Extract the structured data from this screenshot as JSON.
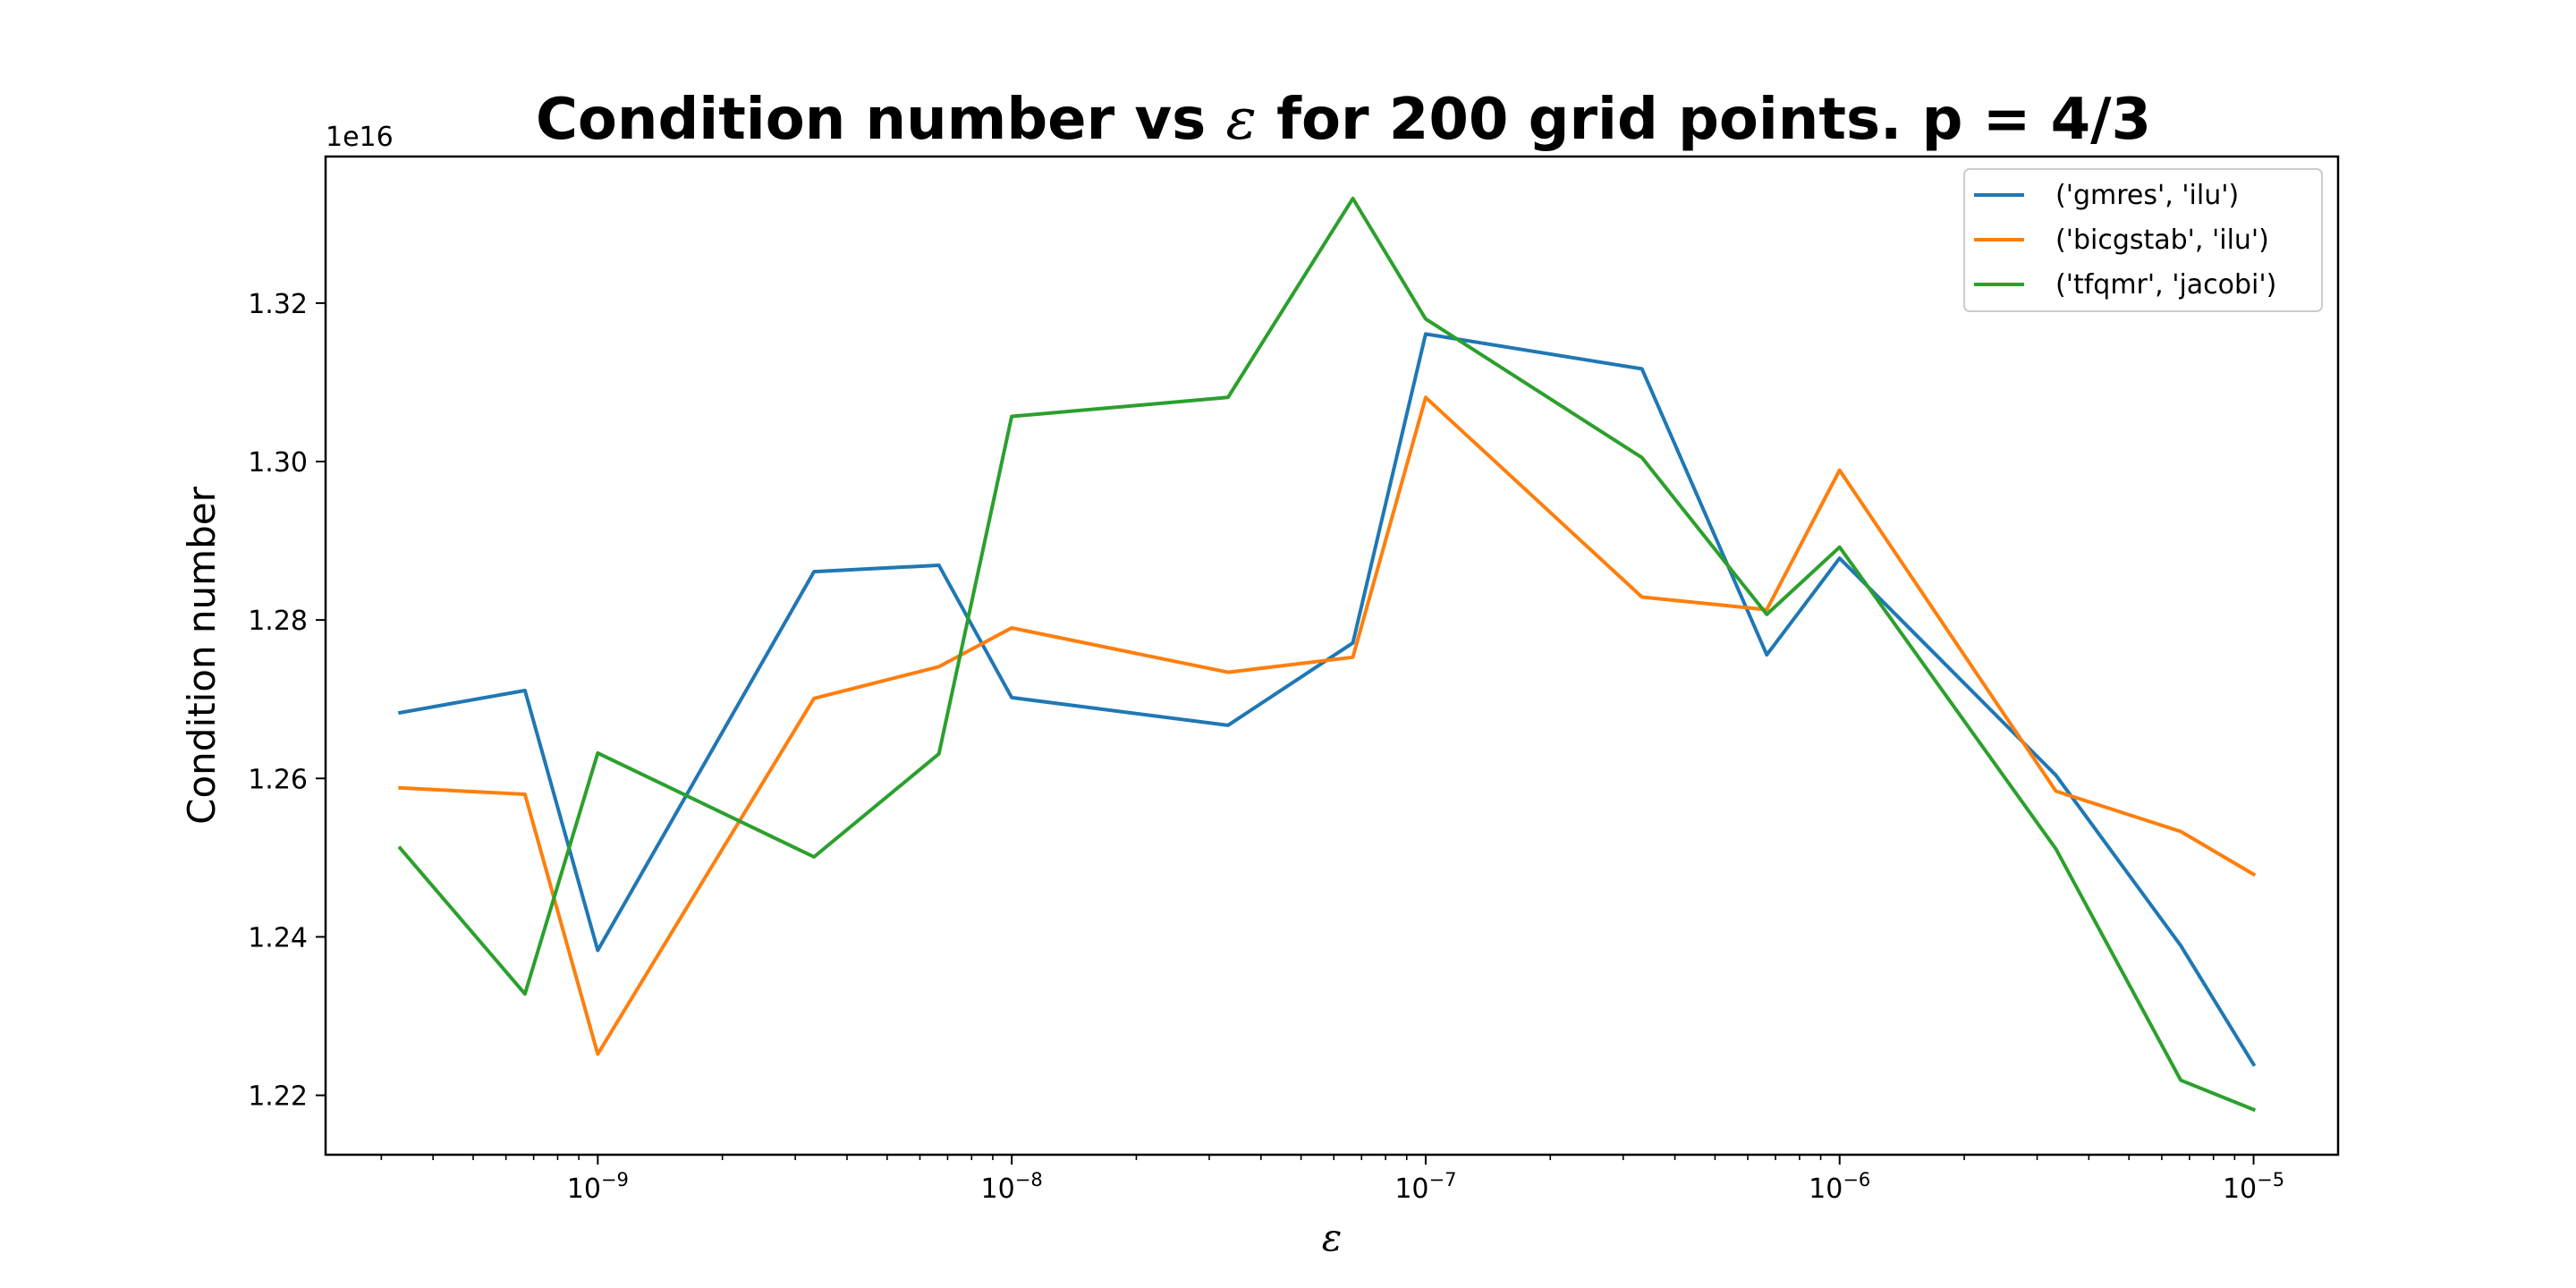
{
  "chart_data": {
    "type": "line",
    "title": "Condition number vs ε for 200 grid points. p = 4/3",
    "title_parts": {
      "before": "Condition number vs ",
      "symbol": "ε",
      "after": " for 200 grid points. p = 4/3"
    },
    "xlabel": "ε",
    "ylabel": "Condition number",
    "x_scale": "log",
    "y_offset_text": "1e16",
    "y_scale_factor": 1e+16,
    "xlim": [
      2.2e-10,
      1.6e-05
    ],
    "ylim": [
      1.2125,
      1.3385
    ],
    "x": [
      3.33e-10,
      6.67e-10,
      1e-09,
      3.33e-09,
      6.67e-09,
      1e-08,
      3.33e-08,
      6.67e-08,
      1e-07,
      3.33e-07,
      6.67e-07,
      1e-06,
      3.33e-06,
      6.67e-06,
      1e-05
    ],
    "x_ticks": [
      {
        "value": 1e-09,
        "base": "10",
        "exp": "−9"
      },
      {
        "value": 1e-08,
        "base": "10",
        "exp": "−8"
      },
      {
        "value": 1e-07,
        "base": "10",
        "exp": "−7"
      },
      {
        "value": 1e-06,
        "base": "10",
        "exp": "−6"
      },
      {
        "value": 1e-05,
        "base": "10",
        "exp": "−5"
      }
    ],
    "y_ticks": [
      {
        "value": 1.22,
        "label": "1.22"
      },
      {
        "value": 1.24,
        "label": "1.24"
      },
      {
        "value": 1.26,
        "label": "1.26"
      },
      {
        "value": 1.28,
        "label": "1.28"
      },
      {
        "value": 1.3,
        "label": "1.30"
      },
      {
        "value": 1.32,
        "label": "1.32"
      }
    ],
    "series": [
      {
        "name": "('gmres', 'ilu')",
        "color": "#1f77b4",
        "values": [
          1.2683,
          1.2711,
          1.2383,
          1.2861,
          1.2869,
          1.2702,
          1.2667,
          1.2771,
          1.3161,
          1.3117,
          1.2756,
          1.2878,
          1.2604,
          1.2389,
          1.2239
        ]
      },
      {
        "name": "('bicgstab', 'ilu')",
        "color": "#ff7f0e",
        "values": [
          1.2588,
          1.258,
          1.2252,
          1.2701,
          1.2741,
          1.279,
          1.2734,
          1.2753,
          1.3081,
          1.2829,
          1.2813,
          1.2989,
          1.2584,
          1.2533,
          1.2479
        ]
      },
      {
        "name": "('tfqmr', 'jacobi')",
        "color": "#2ca02c",
        "values": [
          1.2512,
          1.2328,
          1.2632,
          1.2501,
          1.2631,
          1.3057,
          1.3081,
          1.3332,
          1.318,
          1.3005,
          1.2807,
          1.2892,
          1.2511,
          1.2219,
          1.2182
        ]
      }
    ],
    "grid": false,
    "legend_position": "upper right"
  }
}
